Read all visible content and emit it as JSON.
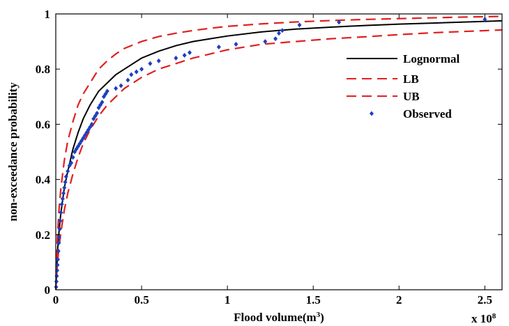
{
  "chart_data": {
    "type": "line",
    "title": "",
    "xlabel": "Flood volume(m",
    "xlabel_superscript": "3",
    "xlabel_suffix": ")",
    "ylabel": "non-exceedance probability",
    "x_multiplier_label": "x 10",
    "x_multiplier_exponent": "8",
    "xlim": [
      0,
      2.6
    ],
    "ylim": [
      0,
      1
    ],
    "grid": false,
    "legend_placement": "right",
    "x_ticks": [
      0,
      0.5,
      1,
      1.5,
      2,
      2.5
    ],
    "x_tick_labels": [
      "0",
      "0.5",
      "1",
      "1.5",
      "2",
      "2.5"
    ],
    "y_ticks": [
      0,
      0.2,
      0.4,
      0.6,
      0.8,
      1
    ],
    "y_tick_labels": [
      "0",
      "0.2",
      "0.4",
      "0.6",
      "0.8",
      "1"
    ],
    "series": [
      {
        "name": "Lognormal",
        "style": "solid",
        "color": "#000000",
        "x": [
          0.0,
          0.01,
          0.02,
          0.03,
          0.05,
          0.07,
          0.1,
          0.13,
          0.16,
          0.2,
          0.25,
          0.3,
          0.35,
          0.4,
          0.5,
          0.6,
          0.7,
          0.8,
          0.9,
          1.0,
          1.2,
          1.4,
          1.6,
          1.8,
          2.0,
          2.2,
          2.4,
          2.6
        ],
        "y": [
          0.0,
          0.14,
          0.22,
          0.28,
          0.37,
          0.43,
          0.51,
          0.57,
          0.62,
          0.67,
          0.72,
          0.75,
          0.78,
          0.8,
          0.84,
          0.865,
          0.885,
          0.9,
          0.91,
          0.92,
          0.935,
          0.945,
          0.952,
          0.958,
          0.963,
          0.967,
          0.971,
          0.975
        ]
      },
      {
        "name": "LB",
        "style": "dashed",
        "color": "#e02020",
        "x": [
          0.0,
          0.01,
          0.02,
          0.03,
          0.05,
          0.07,
          0.1,
          0.13,
          0.16,
          0.2,
          0.25,
          0.3,
          0.35,
          0.4,
          0.5,
          0.6,
          0.7,
          0.8,
          0.9,
          1.0,
          1.2,
          1.4,
          1.6,
          1.8,
          2.0,
          2.2,
          2.4,
          2.6
        ],
        "y": [
          0.0,
          0.1,
          0.16,
          0.21,
          0.29,
          0.35,
          0.42,
          0.48,
          0.53,
          0.58,
          0.63,
          0.67,
          0.7,
          0.73,
          0.77,
          0.8,
          0.82,
          0.84,
          0.855,
          0.87,
          0.89,
          0.9,
          0.91,
          0.917,
          0.925,
          0.932,
          0.937,
          0.942
        ]
      },
      {
        "name": "UB",
        "style": "dashed",
        "color": "#e02020",
        "x": [
          0.0,
          0.01,
          0.02,
          0.03,
          0.05,
          0.07,
          0.1,
          0.13,
          0.16,
          0.2,
          0.25,
          0.3,
          0.35,
          0.4,
          0.5,
          0.6,
          0.7,
          0.8,
          0.9,
          1.0,
          1.2,
          1.4,
          1.6,
          1.8,
          2.0,
          2.2,
          2.4,
          2.6
        ],
        "y": [
          0.0,
          0.2,
          0.3,
          0.37,
          0.47,
          0.54,
          0.61,
          0.67,
          0.71,
          0.75,
          0.8,
          0.83,
          0.855,
          0.875,
          0.9,
          0.918,
          0.93,
          0.94,
          0.948,
          0.955,
          0.964,
          0.971,
          0.976,
          0.98,
          0.983,
          0.986,
          0.989,
          0.991
        ]
      },
      {
        "name": "Observed",
        "style": "markers",
        "color": "#1f3fbf",
        "x": [
          0.002,
          0.004,
          0.006,
          0.008,
          0.01,
          0.012,
          0.015,
          0.018,
          0.02,
          0.023,
          0.026,
          0.03,
          0.035,
          0.04,
          0.045,
          0.05,
          0.055,
          0.06,
          0.07,
          0.08,
          0.09,
          0.1,
          0.11,
          0.12,
          0.13,
          0.14,
          0.15,
          0.16,
          0.17,
          0.18,
          0.19,
          0.2,
          0.21,
          0.22,
          0.23,
          0.24,
          0.25,
          0.26,
          0.27,
          0.28,
          0.29,
          0.3,
          0.35,
          0.38,
          0.42,
          0.44,
          0.47,
          0.5,
          0.55,
          0.6,
          0.7,
          0.75,
          0.78,
          0.95,
          1.05,
          1.22,
          1.28,
          1.3,
          1.32,
          1.42,
          1.65,
          2.5
        ],
        "y": [
          0.01,
          0.03,
          0.05,
          0.07,
          0.09,
          0.11,
          0.14,
          0.17,
          0.19,
          0.22,
          0.25,
          0.28,
          0.31,
          0.33,
          0.35,
          0.37,
          0.39,
          0.41,
          0.43,
          0.45,
          0.46,
          0.48,
          0.5,
          0.51,
          0.52,
          0.53,
          0.54,
          0.55,
          0.56,
          0.57,
          0.58,
          0.59,
          0.6,
          0.62,
          0.63,
          0.64,
          0.66,
          0.67,
          0.68,
          0.7,
          0.71,
          0.72,
          0.73,
          0.74,
          0.76,
          0.78,
          0.79,
          0.8,
          0.82,
          0.83,
          0.84,
          0.85,
          0.86,
          0.88,
          0.89,
          0.9,
          0.91,
          0.93,
          0.94,
          0.96,
          0.97,
          0.98
        ]
      }
    ]
  }
}
